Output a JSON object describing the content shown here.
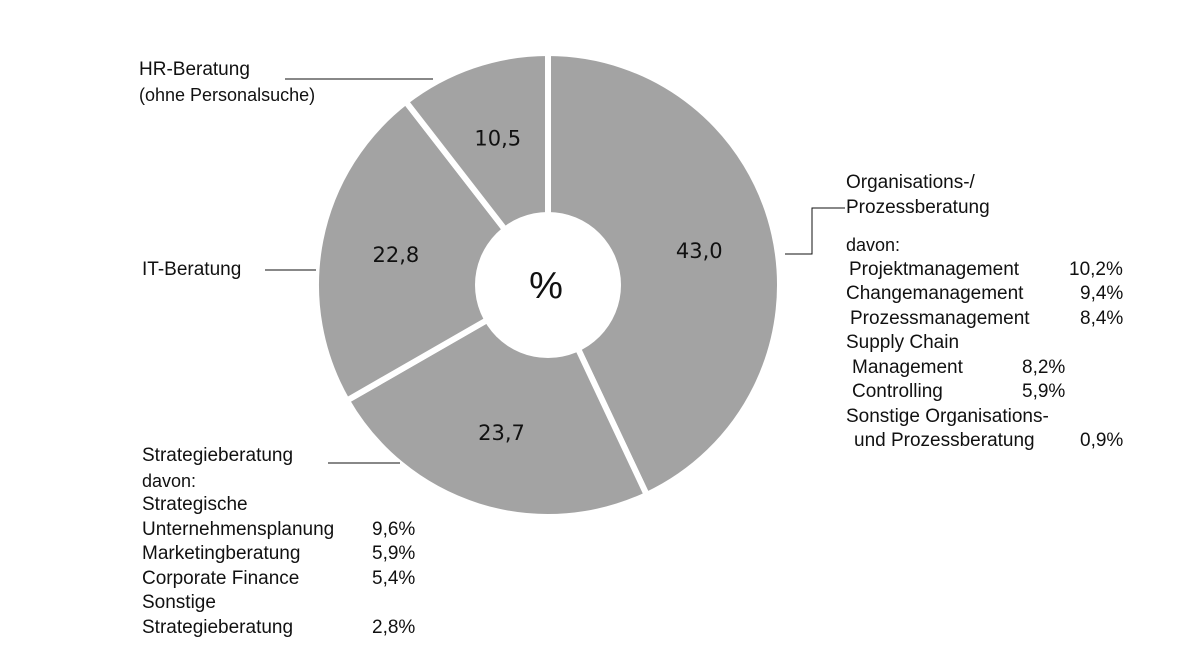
{
  "chart_data": {
    "type": "pie",
    "variant": "donut",
    "center_label": "%",
    "slices": [
      {
        "label": "Organisations-/ Prozessberatung",
        "value": 43.0,
        "value_label": "43,0",
        "color": "#a3a3a3"
      },
      {
        "label": "Strategieberatung",
        "value": 23.7,
        "value_label": "23,7",
        "color": "#a3a3a3"
      },
      {
        "label": "IT-Beratung",
        "value": 22.8,
        "value_label": "22,8",
        "color": "#a3a3a3"
      },
      {
        "label": "HR-Beratung (ohne Personalsuche)",
        "value": 10.5,
        "value_label": "10,5",
        "color": "#a3a3a3"
      }
    ],
    "separator_color": "#ffffff"
  },
  "labels": {
    "hr": {
      "line1": "HR-Beratung",
      "line2": "(ohne Personalsuche)"
    },
    "it": {
      "title": "IT-Beratung"
    },
    "org": {
      "title1": "Organisations-/",
      "title2": "Prozessberatung",
      "davon": "davon:",
      "items": [
        {
          "name": "Projektmanagement",
          "value": "10,2%"
        },
        {
          "name": "Changemanagement",
          "value": "9,4%"
        },
        {
          "name": "Prozessmanagement",
          "value": "8,4%"
        },
        {
          "name": "Supply Chain",
          "value": ""
        },
        {
          "name": "Management",
          "value": "8,2%"
        },
        {
          "name": "Controlling",
          "value": "5,9%"
        },
        {
          "name": "Sonstige Organisations-",
          "value": ""
        },
        {
          "name": "und Prozessberatung",
          "value": "0,9%"
        }
      ]
    },
    "strat": {
      "title": "Strategieberatung",
      "davon": "davon:",
      "items": [
        {
          "name": "Strategische",
          "value": ""
        },
        {
          "name": "Unternehmensplanung",
          "value": "9,6%"
        },
        {
          "name": "Marketingberatung",
          "value": "5,9%"
        },
        {
          "name": "Corporate Finance",
          "value": "5,4%"
        },
        {
          "name": "Sonstige",
          "value": ""
        },
        {
          "name": "Strategieberatung",
          "value": "2,8%"
        }
      ]
    }
  }
}
